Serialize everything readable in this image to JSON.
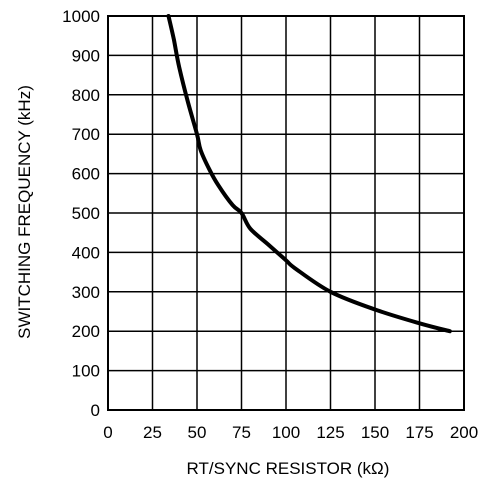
{
  "chart_data": {
    "type": "line",
    "xlabel": "RT/SYNC RESISTOR (kΩ)",
    "ylabel": "SWITCHING FREQUENCY (kHz)",
    "xlim": [
      0,
      200
    ],
    "ylim": [
      0,
      1000
    ],
    "x_ticks": [
      0,
      25,
      50,
      75,
      100,
      125,
      150,
      175,
      200
    ],
    "y_ticks": [
      0,
      100,
      200,
      300,
      400,
      500,
      600,
      700,
      800,
      900,
      1000
    ],
    "grid": true,
    "series": [
      {
        "color": "#000000",
        "x": [
          34,
          37,
          40,
          45,
          50,
          52,
          57,
          62,
          70,
          75,
          80,
          90,
          100,
          105,
          125,
          150,
          175,
          192
        ],
        "y": [
          1000,
          940,
          870,
          780,
          700,
          660,
          610,
          570,
          520,
          500,
          460,
          420,
          380,
          360,
          300,
          255,
          220,
          200
        ]
      }
    ]
  }
}
